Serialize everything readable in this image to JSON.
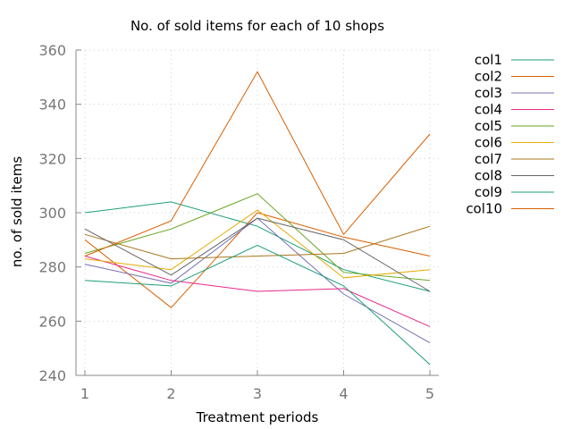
{
  "chart_data": {
    "type": "line",
    "title": "No. of sold items for each of 10 shops",
    "xlabel": "Treatment periods",
    "ylabel": "no. of sold items",
    "x": [
      1,
      2,
      3,
      4,
      5
    ],
    "xlim": [
      1,
      5
    ],
    "ylim": [
      240,
      360
    ],
    "yticks": [
      240,
      260,
      280,
      300,
      320,
      340,
      360
    ],
    "grid": true,
    "legend_position": "right",
    "series": [
      {
        "name": "col1",
        "color": "#1b9e77",
        "values": [
          300,
          304,
          295,
          279,
          271
        ]
      },
      {
        "name": "col2",
        "color": "#d95f02",
        "values": [
          290,
          265,
          300,
          291,
          284
        ]
      },
      {
        "name": "col3",
        "color": "#7570b3",
        "values": [
          281,
          274,
          298,
          270,
          252
        ]
      },
      {
        "name": "col4",
        "color": "#e7298a",
        "values": [
          284,
          275,
          271,
          272,
          258
        ]
      },
      {
        "name": "col5",
        "color": "#66a61e",
        "values": [
          285,
          294,
          307,
          278,
          275
        ]
      },
      {
        "name": "col6",
        "color": "#e6ab02",
        "values": [
          283,
          279,
          301,
          276,
          279
        ]
      },
      {
        "name": "col7",
        "color": "#a6761d",
        "values": [
          292,
          283,
          284,
          285,
          295
        ]
      },
      {
        "name": "col8",
        "color": "#666666",
        "values": [
          294,
          277,
          298,
          290,
          271
        ]
      },
      {
        "name": "col9",
        "color": "#1b9e77",
        "values": [
          275,
          273,
          288,
          273,
          244
        ]
      },
      {
        "name": "col10",
        "color": "#d95f02",
        "values": [
          284,
          297,
          352,
          292,
          329
        ]
      }
    ]
  }
}
